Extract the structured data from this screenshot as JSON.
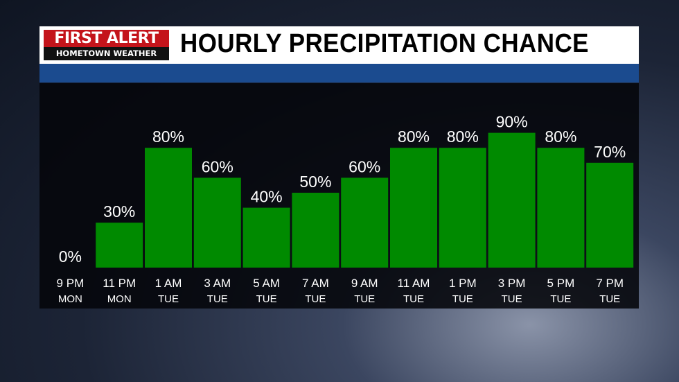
{
  "logo": {
    "line1": "FIRST ALERT",
    "line2": "HOMETOWN WEATHER"
  },
  "chart_data": {
    "type": "bar",
    "title": "HOURLY PRECIPITATION CHANCE",
    "categories": [
      [
        "9 PM",
        "MON"
      ],
      [
        "11 PM",
        "MON"
      ],
      [
        "1 AM",
        "TUE"
      ],
      [
        "3 AM",
        "TUE"
      ],
      [
        "5 AM",
        "TUE"
      ],
      [
        "7 AM",
        "TUE"
      ],
      [
        "9 AM",
        "TUE"
      ],
      [
        "11 AM",
        "TUE"
      ],
      [
        "1 PM",
        "TUE"
      ],
      [
        "3 PM",
        "TUE"
      ],
      [
        "5 PM",
        "TUE"
      ],
      [
        "7 PM",
        "TUE"
      ]
    ],
    "values": [
      0,
      30,
      80,
      60,
      40,
      50,
      60,
      80,
      80,
      90,
      80,
      70
    ],
    "value_suffix": "%",
    "ylim": [
      0,
      100
    ],
    "grid": false,
    "bar_color": "#008a00"
  }
}
